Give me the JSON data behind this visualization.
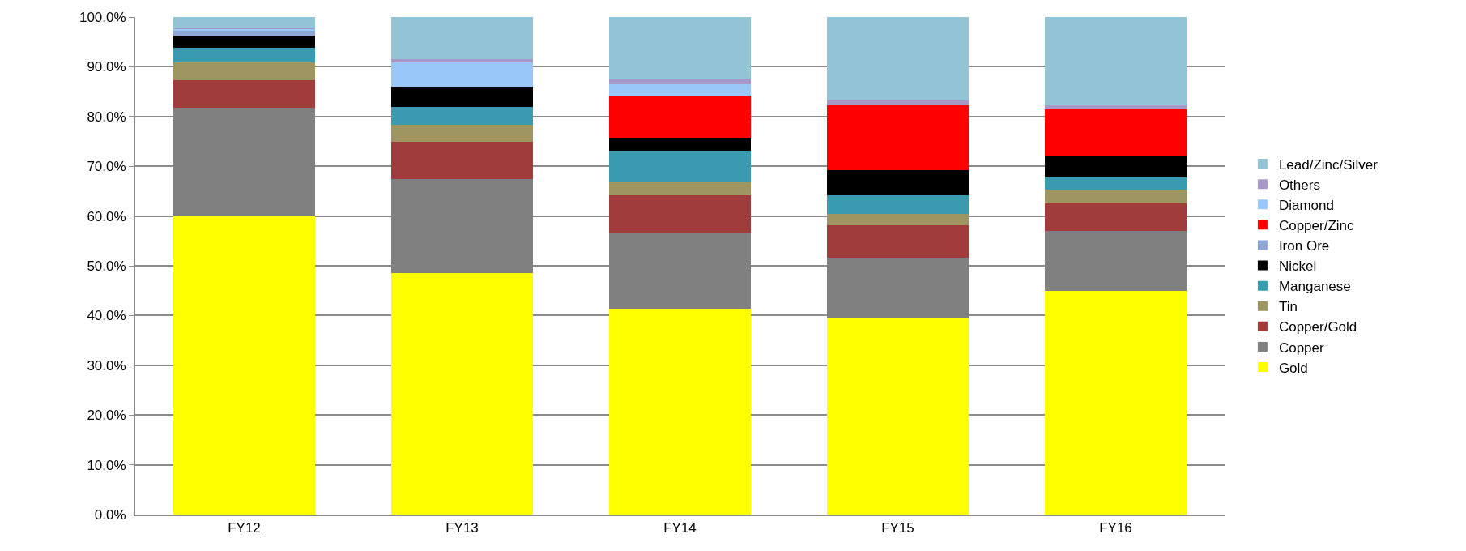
{
  "chart_data": {
    "type": "bar",
    "stacked": true,
    "categories": [
      "FY12",
      "FY13",
      "FY14",
      "FY15",
      "FY16"
    ],
    "series": [
      {
        "name": "Gold",
        "color": "#ffff00",
        "values": [
          59.9,
          48.5,
          41.3,
          39.5,
          44.9
        ]
      },
      {
        "name": "Copper",
        "color": "#808080",
        "values": [
          21.8,
          18.9,
          15.3,
          12.1,
          12.1
        ]
      },
      {
        "name": "Copper/Gold",
        "color": "#a03c3c",
        "values": [
          5.6,
          7.6,
          7.5,
          6.6,
          5.6
        ]
      },
      {
        "name": "Tin",
        "color": "#9e9560",
        "values": [
          3.6,
          3.3,
          2.6,
          2.2,
          2.7
        ]
      },
      {
        "name": "Manganese",
        "color": "#3a9bb0",
        "values": [
          2.9,
          3.6,
          6.5,
          3.7,
          2.4
        ]
      },
      {
        "name": "Nickel",
        "color": "#000000",
        "values": [
          2.4,
          4.1,
          2.5,
          5.1,
          4.4
        ]
      },
      {
        "name": "Iron Ore",
        "color": "#8ea7d6",
        "values": [
          1.0,
          0,
          0,
          0,
          0
        ]
      },
      {
        "name": "Copper/Zinc",
        "color": "#ff0000",
        "values": [
          0,
          0,
          8.5,
          13.1,
          9.3
        ]
      },
      {
        "name": "Diamond",
        "color": "#99c8f8",
        "values": [
          0.3,
          4.8,
          2.3,
          0,
          0
        ]
      },
      {
        "name": "Others",
        "color": "#a898c8",
        "values": [
          0.2,
          0.8,
          1.1,
          1.0,
          0.8
        ]
      },
      {
        "name": "Lead/Zinc/Silver",
        "color": "#93c4d6",
        "values": [
          2.3,
          8.4,
          12.4,
          16.7,
          17.8
        ]
      }
    ],
    "ylim": [
      0,
      100
    ],
    "yticks": [
      {
        "value": 0,
        "label": "0.0%"
      },
      {
        "value": 10,
        "label": "10.0%"
      },
      {
        "value": 20,
        "label": "20.0%"
      },
      {
        "value": 30,
        "label": "30.0%"
      },
      {
        "value": 40,
        "label": "40.0%"
      },
      {
        "value": 50,
        "label": "50.0%"
      },
      {
        "value": 60,
        "label": "60.0%"
      },
      {
        "value": 70,
        "label": "70.0%"
      },
      {
        "value": 80,
        "label": "80.0%"
      },
      {
        "value": 90,
        "label": "90.0%"
      },
      {
        "value": 100,
        "label": "100.0%"
      }
    ],
    "grid": "y",
    "legend": "right"
  }
}
